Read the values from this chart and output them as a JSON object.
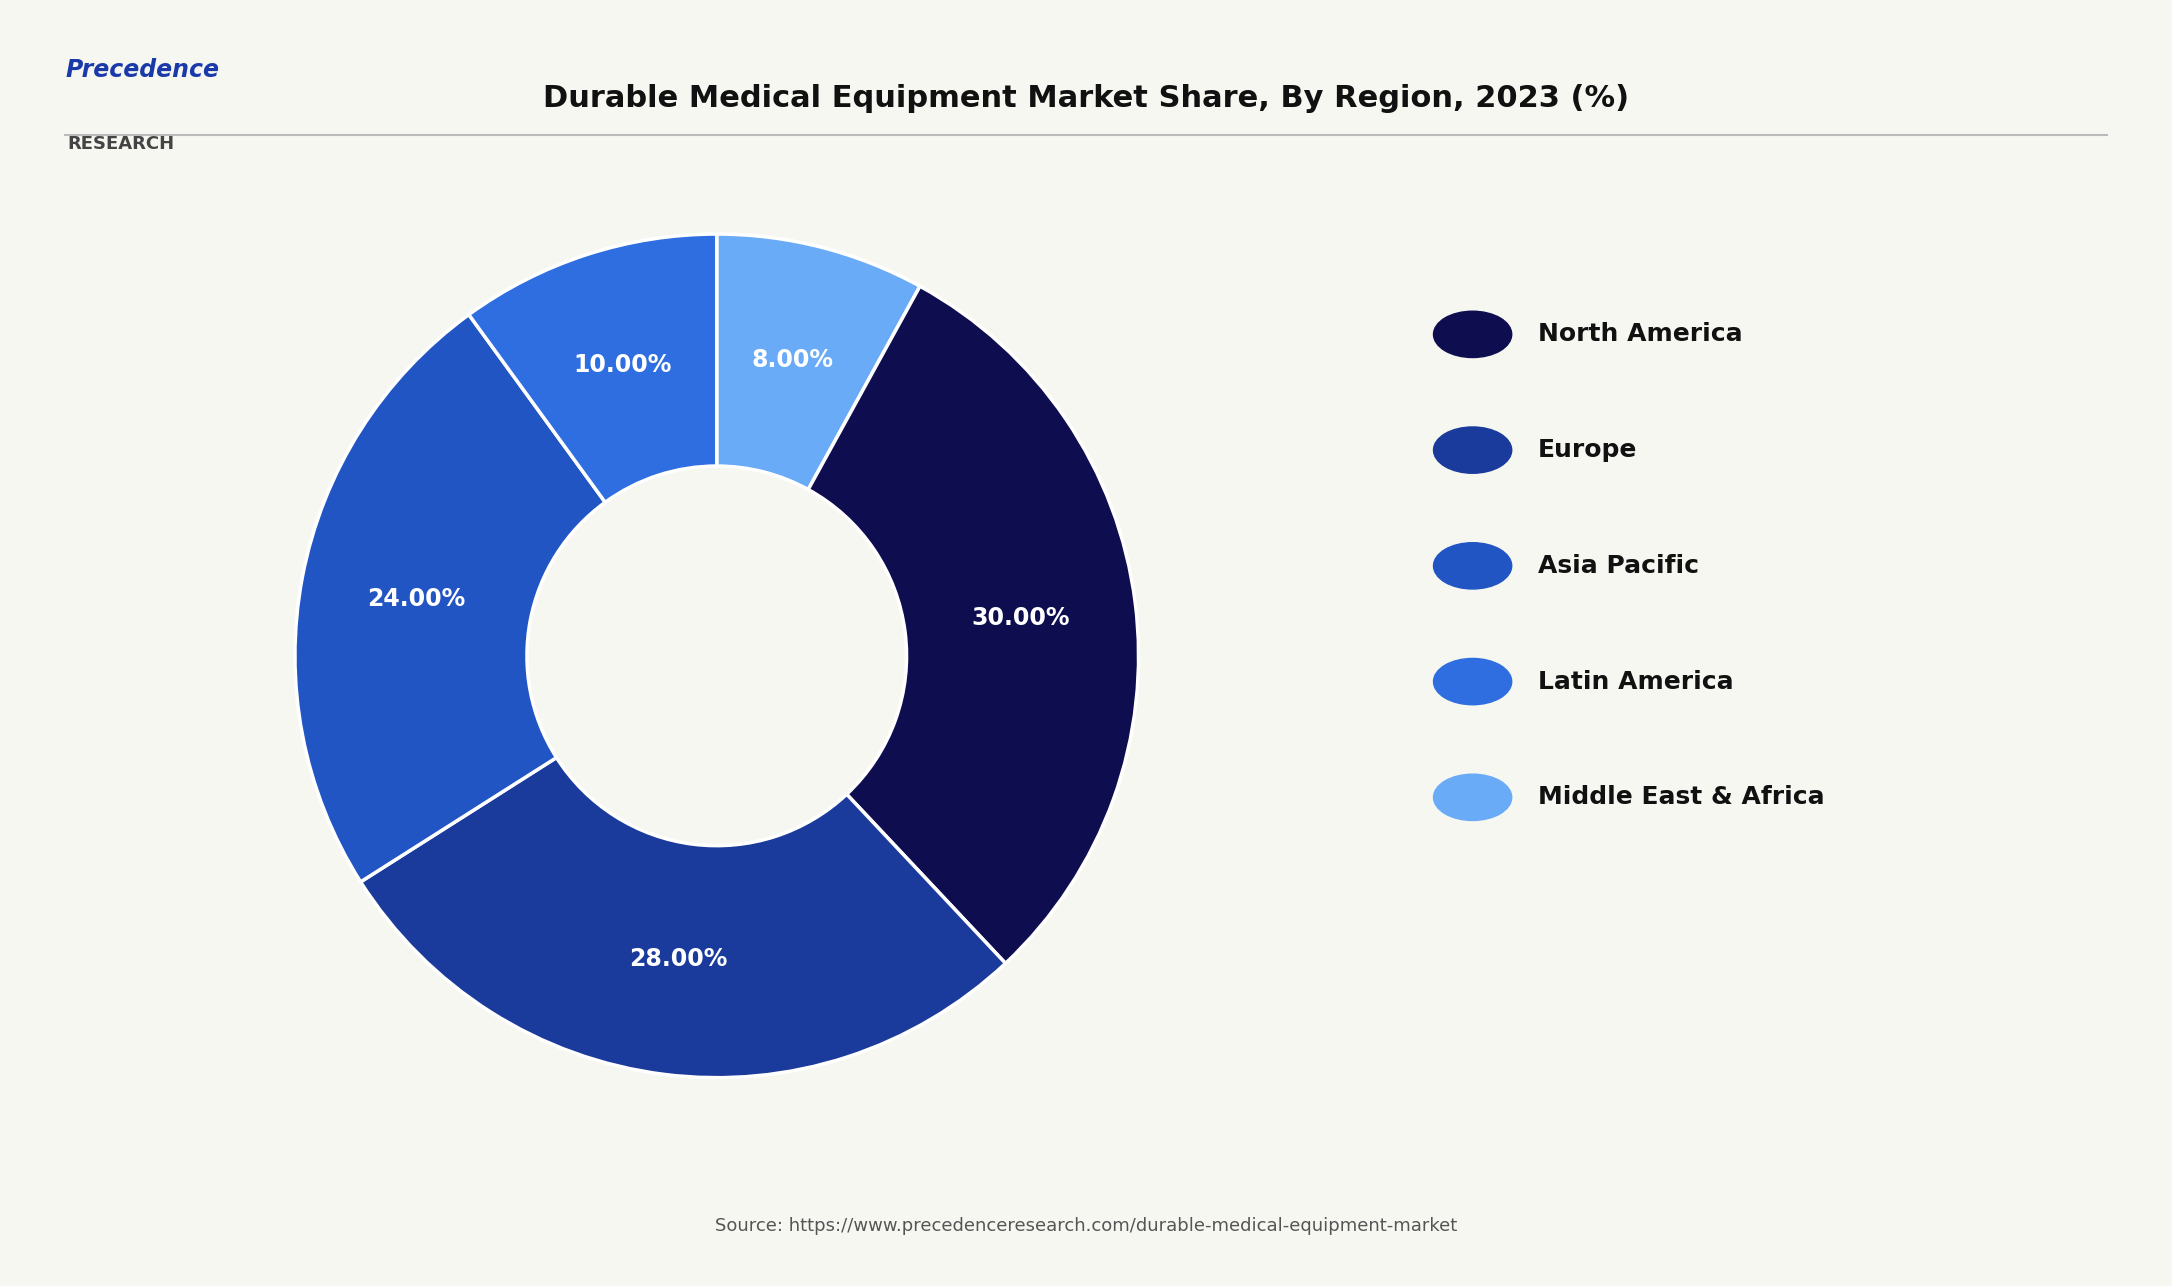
{
  "title": "Durable Medical Equipment Market Share, By Region, 2023 (%)",
  "labels": [
    "North America",
    "Europe",
    "Asia Pacific",
    "Latin America",
    "Middle East & Africa"
  ],
  "values": [
    30.0,
    28.0,
    24.0,
    10.0,
    8.0
  ],
  "colors": [
    "#0d0d4f",
    "#1a3a9c",
    "#2255c4",
    "#2e6ee0",
    "#6aabf7"
  ],
  "pct_labels": [
    "30.00%",
    "28.00%",
    "24.00%",
    "10.00%",
    "8.00%"
  ],
  "source_text": "Source: https://www.precedenceresearch.com/durable-medical-equipment-market",
  "background_color": "#f7f7f2",
  "wedge_edge_color": "#ffffff",
  "label_color": "#ffffff",
  "legend_text_color": "#111111",
  "title_color": "#111111",
  "logo_text_1": "Precedence",
  "logo_text_2": "RESEARCH",
  "plot_values": [
    8.0,
    30.0,
    28.0,
    24.0,
    10.0
  ],
  "plot_colors": [
    "#6aabf7",
    "#0d0d4f",
    "#1a3a9c",
    "#2255c4",
    "#2e6ee0"
  ],
  "plot_pct": [
    "8.00%",
    "30.00%",
    "28.00%",
    "24.00%",
    "10.00%"
  ]
}
